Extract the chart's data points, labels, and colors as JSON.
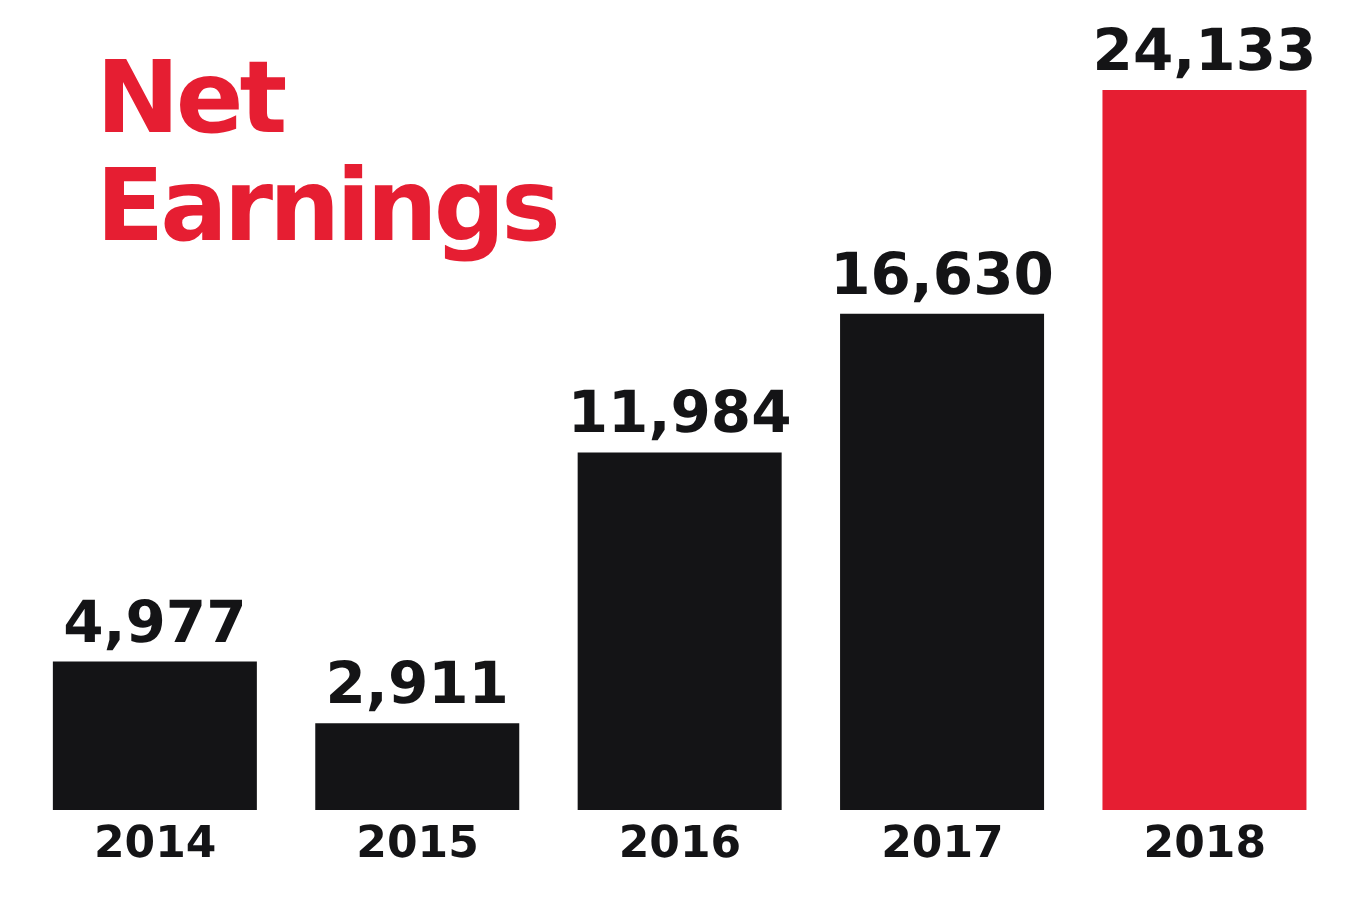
{
  "chart_data": {
    "type": "bar",
    "title": "Net Earnings",
    "categories": [
      "2014",
      "2015",
      "2016",
      "2017",
      "2018"
    ],
    "values": [
      4977,
      2911,
      11984,
      16630,
      24133
    ],
    "colors": [
      "#141416",
      "#141416",
      "#141416",
      "#141416",
      "#e61e32"
    ],
    "value_labels": [
      "4,977",
      "2,911",
      "11,984",
      "16,630",
      "24,133"
    ],
    "grid": false,
    "legend": false
  }
}
